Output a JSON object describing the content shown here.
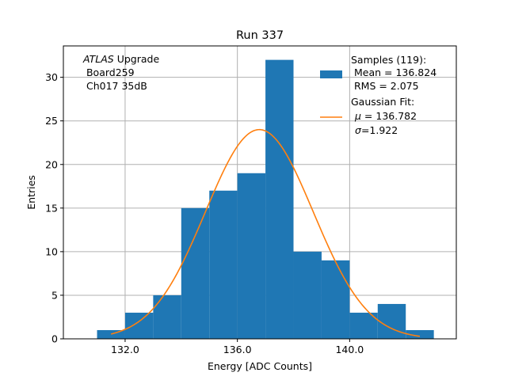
{
  "chart_data": {
    "type": "bar",
    "title": "Run 337",
    "xlabel": "Energy [ADC Counts]",
    "ylabel": "Entries",
    "xlim": [
      129.8,
      143.8
    ],
    "ylim": [
      0,
      33.6
    ],
    "grid": true,
    "bin_width": 1.0,
    "bins": [
      {
        "x0": 131.0,
        "count": 1
      },
      {
        "x0": 132.0,
        "count": 3
      },
      {
        "x0": 133.0,
        "count": 5
      },
      {
        "x0": 134.0,
        "count": 15
      },
      {
        "x0": 135.0,
        "count": 17
      },
      {
        "x0": 136.0,
        "count": 19
      },
      {
        "x0": 137.0,
        "count": 32
      },
      {
        "x0": 138.0,
        "count": 10
      },
      {
        "x0": 139.0,
        "count": 9
      },
      {
        "x0": 140.0,
        "count": 3
      },
      {
        "x0": 141.0,
        "count": 4
      },
      {
        "x0": 142.0,
        "count": 1
      }
    ],
    "fit": {
      "mu": 136.782,
      "sigma": 1.922,
      "amplitude": 24.0,
      "x_range": [
        131.5,
        142.5
      ]
    },
    "xticks": [
      132.0,
      136.0,
      140.0
    ],
    "xtick_labels": [
      "132.0",
      "136.0",
      "140.0"
    ],
    "yticks": [
      0,
      5,
      10,
      15,
      20,
      25,
      30
    ],
    "ytick_labels": [
      "0",
      "5",
      "10",
      "15",
      "20",
      "25",
      "30"
    ],
    "legend_position": "top-right",
    "legend": {
      "samples_line1": "Samples (119):",
      "samples_line2": " Mean = 136.824",
      "samples_line3": " RMS = 2.075",
      "fit_line1": "Gaussian Fit:",
      "fit_line2_sym": "μ",
      "fit_line2_rest": " = 136.782",
      "fit_line3_sym": "σ",
      "fit_line3_rest": "=1.922"
    },
    "annotation": {
      "line1_italic": "ATLAS",
      "line1_rest": " Upgrade",
      "line2": " Board259",
      "line3": " Ch017 35dB"
    },
    "colors": {
      "bars": "#1f77b4",
      "fit": "#ff7f0e",
      "grid": "#b0b0b0"
    }
  }
}
